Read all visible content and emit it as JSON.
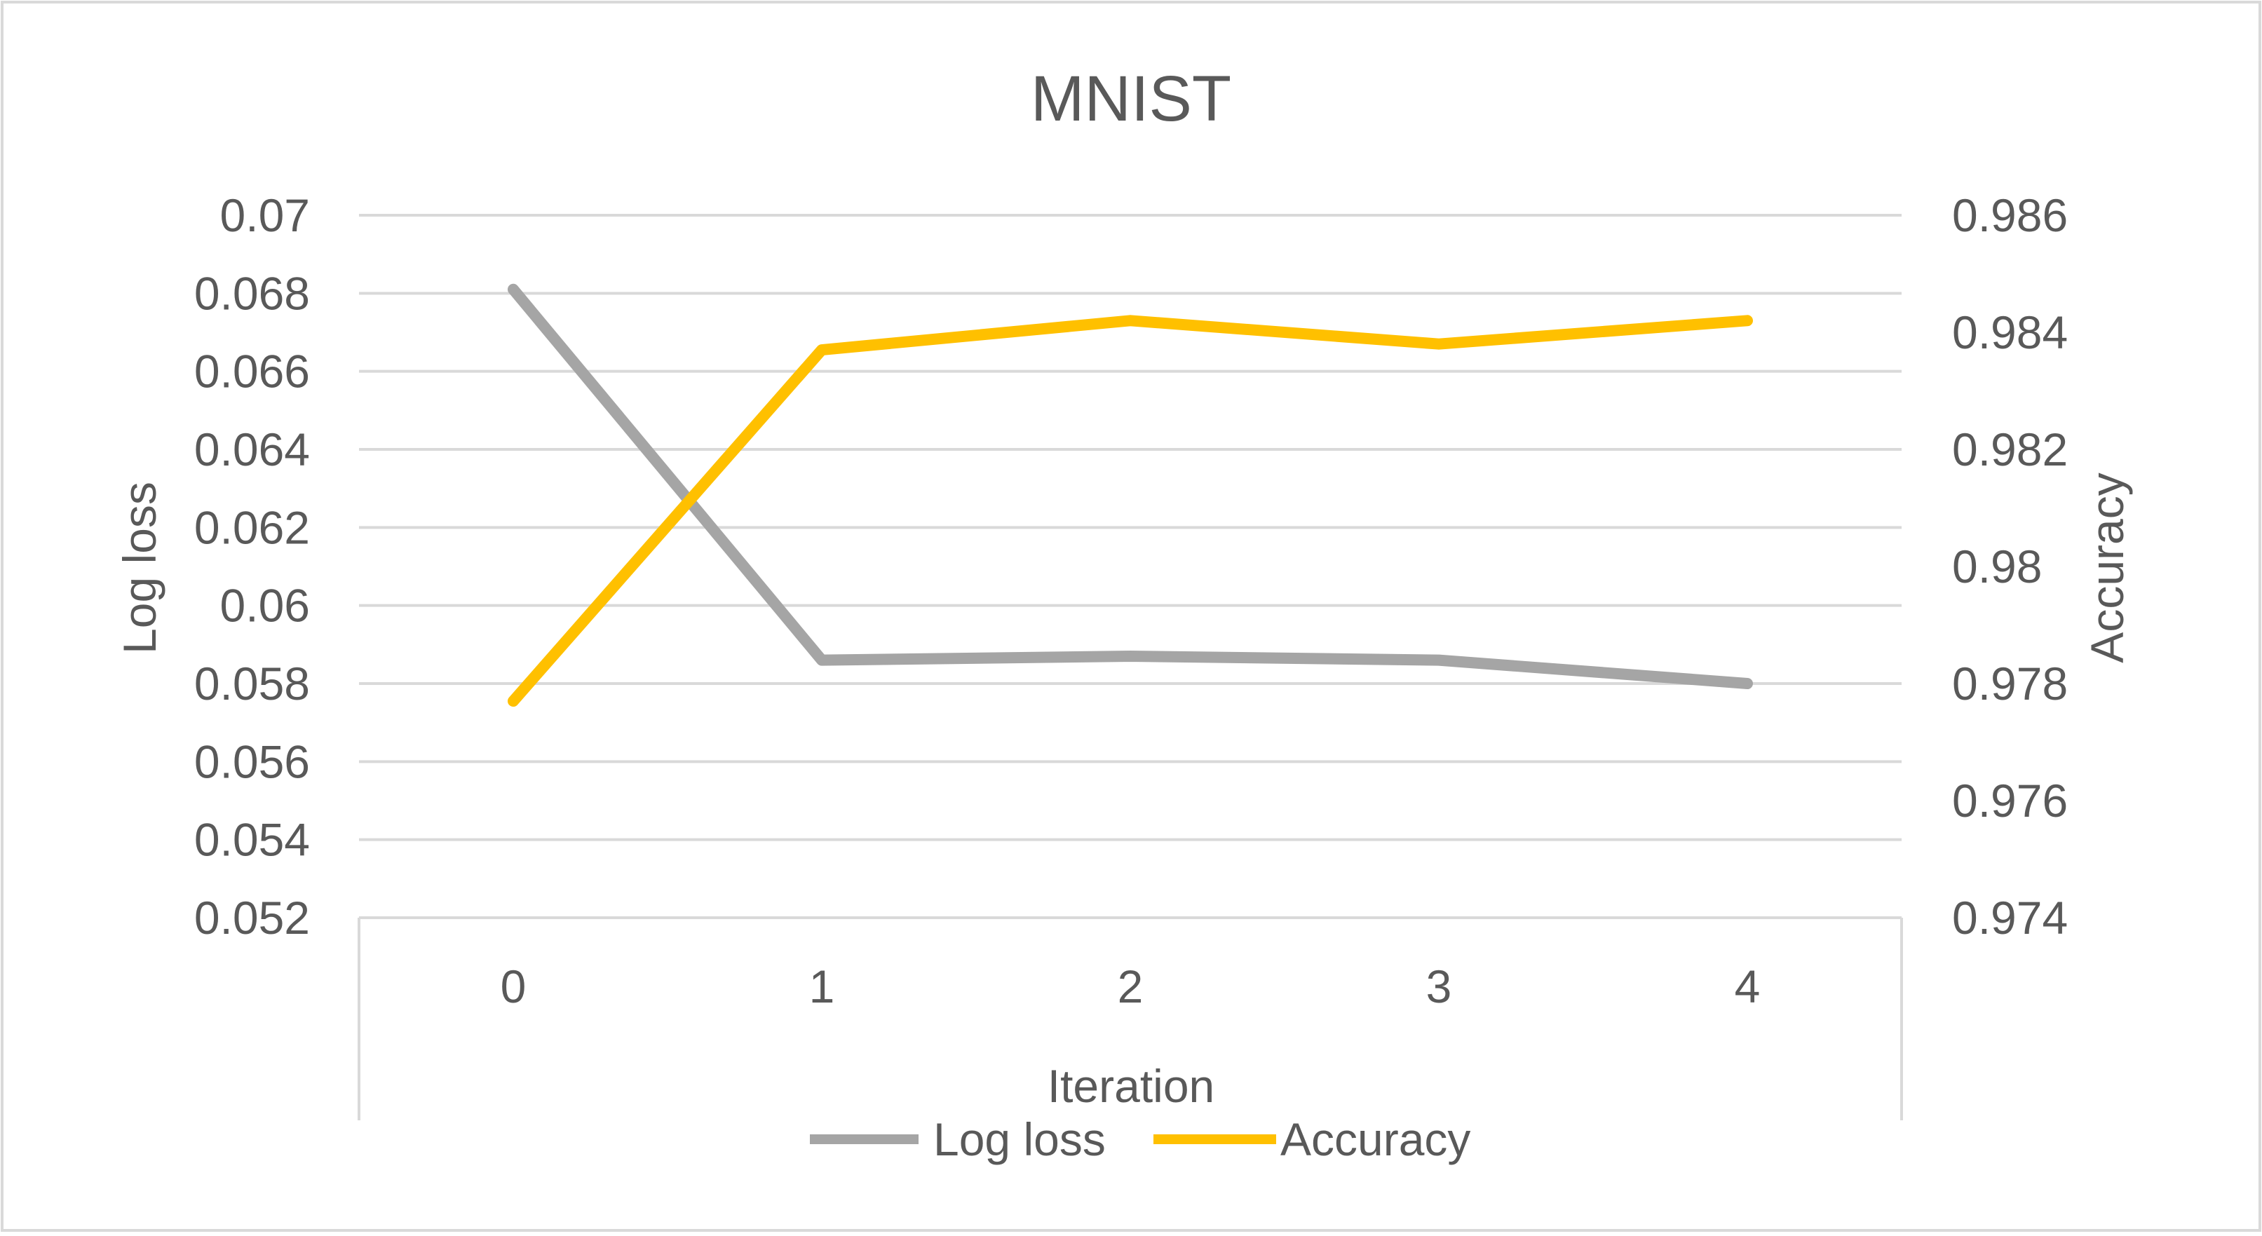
{
  "chart_data": {
    "type": "line",
    "title": "MNIST",
    "xlabel": "Iteration",
    "ylabel_left": "Log loss",
    "ylabel_right": "Accuracy",
    "categories": [
      "0",
      "1",
      "2",
      "3",
      "4"
    ],
    "y_left_ticks": [
      "0.07",
      "0.068",
      "0.066",
      "0.064",
      "0.062",
      "0.06",
      "0.058",
      "0.056",
      "0.054",
      "0.052"
    ],
    "y_right_ticks": [
      "0.986",
      "0.984",
      "0.982",
      "0.98",
      "0.978",
      "0.976",
      "0.974"
    ],
    "ylim_left": [
      0.052,
      0.07
    ],
    "ylim_right": [
      0.974,
      0.986
    ],
    "grid": true,
    "legend_position": "bottom",
    "series": [
      {
        "name": "Log loss",
        "axis": "left",
        "color": "#a5a5a5",
        "values": [
          0.0681,
          0.0586,
          0.0587,
          0.0586,
          0.058
        ]
      },
      {
        "name": "Accuracy",
        "axis": "right",
        "color": "#ffc000",
        "values": [
          0.9777,
          0.9837,
          0.9842,
          0.9838,
          0.9842
        ]
      }
    ]
  },
  "colors": {
    "text": "#595959",
    "title": "#595959",
    "grid": "#d9d9d9",
    "border": "#d9d9d9"
  }
}
